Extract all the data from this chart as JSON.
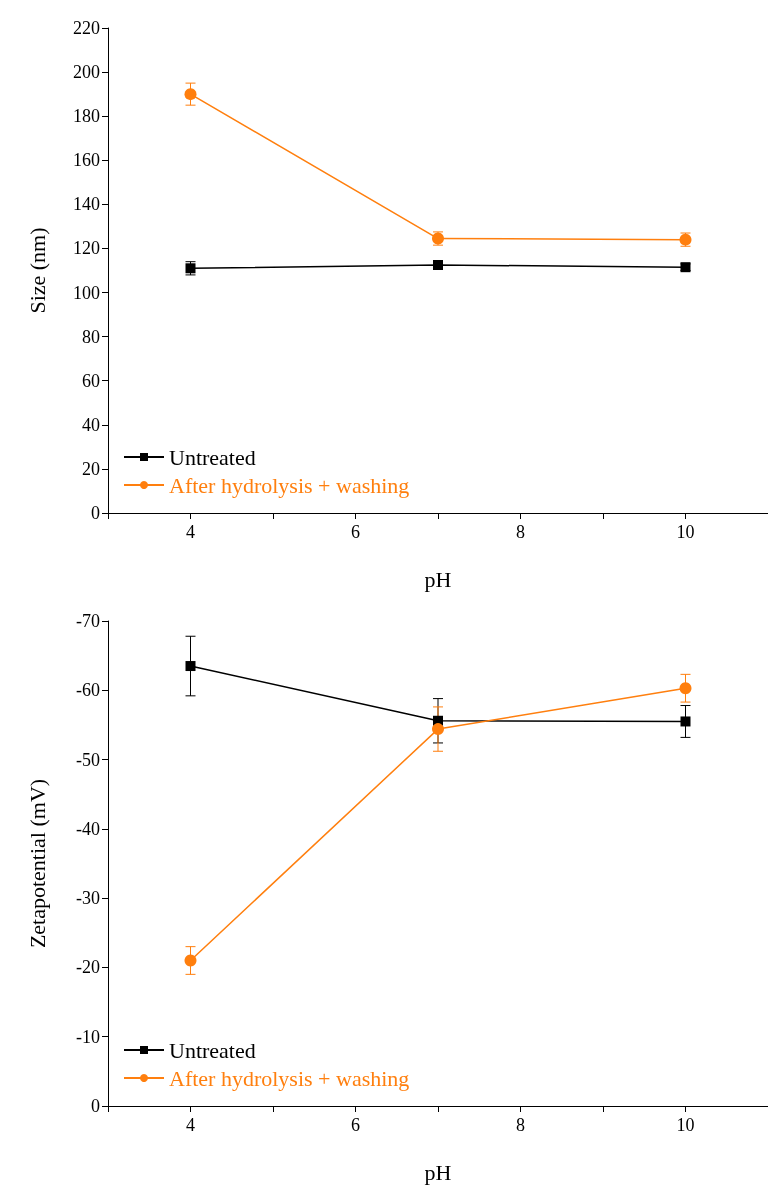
{
  "chart_data": [
    {
      "type": "line",
      "xlabel": "pH",
      "ylabel": "Size (nm)",
      "x": [
        4,
        7,
        10
      ],
      "xlim": [
        3,
        11
      ],
      "xticks": [
        {
          "value": 3,
          "label": null
        },
        4,
        {
          "value": 5,
          "label": null
        },
        6,
        {
          "value": 7,
          "label": null
        },
        8,
        {
          "value": 9,
          "label": null
        },
        10,
        {
          "value": 11,
          "label": null
        }
      ],
      "ylim": [
        0,
        220
      ],
      "yticks": [
        0,
        20,
        40,
        60,
        80,
        100,
        120,
        140,
        160,
        180,
        200,
        220
      ],
      "grid": false,
      "legend": "bottom left",
      "series": [
        {
          "name": "Untreated",
          "color": "#000000",
          "marker": "square",
          "values": [
            111,
            112.5,
            111.5
          ],
          "errors": [
            3,
            1.5,
            1.5
          ]
        },
        {
          "name": "After hydrolysis + washing",
          "color": "#ff7f0e",
          "marker": "circle",
          "values": [
            190,
            124.5,
            124
          ],
          "errors": [
            5,
            3,
            3
          ]
        }
      ]
    },
    {
      "type": "line",
      "xlabel": "pH",
      "ylabel": "Zetapotential (mV)",
      "x": [
        4,
        7,
        10
      ],
      "xlim": [
        3,
        11
      ],
      "xticks": [
        {
          "value": 3,
          "label": null
        },
        4,
        {
          "value": 5,
          "label": null
        },
        6,
        {
          "value": 7,
          "label": null
        },
        8,
        {
          "value": 9,
          "label": null
        },
        10,
        {
          "value": 11,
          "label": null
        }
      ],
      "ylim": [
        0,
        -70
      ],
      "yticks": [
        0,
        -10,
        -20,
        -30,
        -40,
        -50,
        -60,
        -70
      ],
      "grid": false,
      "legend": "bottom left",
      "series": [
        {
          "name": "Untreated",
          "color": "#000000",
          "marker": "square",
          "values": [
            -63.5,
            -55.6,
            -55.5
          ],
          "errors": [
            4.3,
            3.2,
            2.3
          ]
        },
        {
          "name": "After hydrolysis + washing",
          "color": "#ff7f0e",
          "marker": "circle",
          "values": [
            -21,
            -54.4,
            -60.3
          ],
          "errors": [
            2,
            3.2,
            2
          ]
        }
      ]
    }
  ]
}
